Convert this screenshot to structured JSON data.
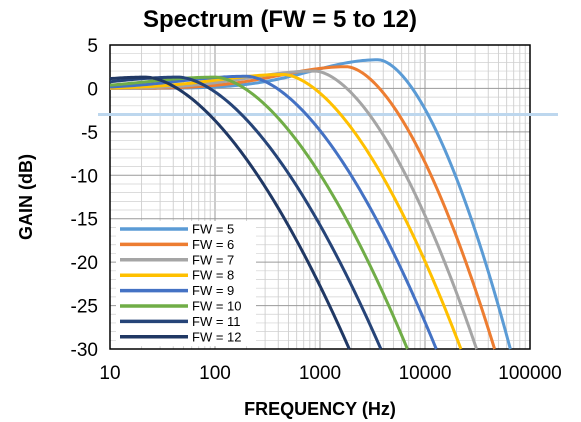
{
  "chart_data": {
    "type": "line",
    "title": "Spectrum (FW = 5 to 12)",
    "xlabel": "FREQUENCY (Hz)",
    "ylabel": "GAIN (dB)",
    "x_scale": "log",
    "xlim": [
      10,
      100000
    ],
    "ylim": [
      -30,
      5
    ],
    "x_ticks": [
      "10",
      "100",
      "1000",
      "10000",
      "100000"
    ],
    "y_ticks": [
      "5",
      "0",
      "-5",
      "-10",
      "-15",
      "-20",
      "-25",
      "-30"
    ],
    "grid": true,
    "legend_position": "bottom-left",
    "reference_line": {
      "y": -3,
      "color": "#BDD7EE"
    },
    "series": [
      {
        "name": "FW = 5",
        "color": "#5B9BD5",
        "peak_freq": 3600,
        "peak_gain": 3.3,
        "cross_30_freq": 65000
      },
      {
        "name": "FW = 6",
        "color": "#ED7D31",
        "peak_freq": 1800,
        "peak_gain": 2.5,
        "cross_30_freq": 46000
      },
      {
        "name": "FW = 7",
        "color": "#A5A5A5",
        "peak_freq": 900,
        "peak_gain": 2.0,
        "cross_30_freq": 31000
      },
      {
        "name": "FW = 8",
        "color": "#FFC000",
        "peak_freq": 450,
        "peak_gain": 1.6,
        "cross_30_freq": 22000
      },
      {
        "name": "FW = 9",
        "color": "#4472C4",
        "peak_freq": 200,
        "peak_gain": 1.4,
        "cross_30_freq": 12800
      },
      {
        "name": "FW = 10",
        "color": "#70AD47",
        "peak_freq": 100,
        "peak_gain": 1.3,
        "cross_30_freq": 6800
      },
      {
        "name": "FW = 11",
        "color": "#264478",
        "peak_freq": 45,
        "peak_gain": 1.3,
        "cross_30_freq": 3800
      },
      {
        "name": "FW = 12",
        "color": "#203864",
        "peak_freq": 22,
        "peak_gain": 1.3,
        "cross_30_freq": 1900
      }
    ]
  }
}
